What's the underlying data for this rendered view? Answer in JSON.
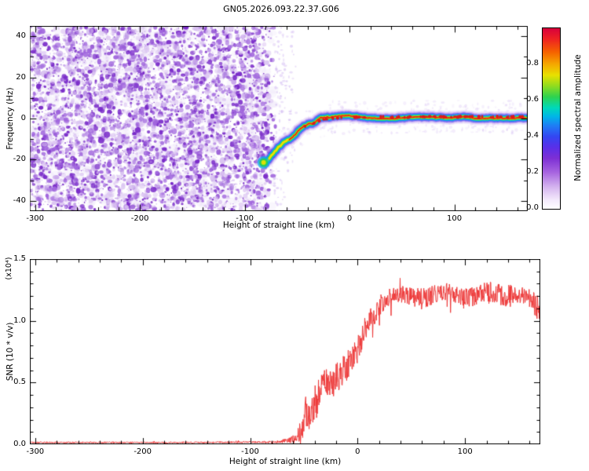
{
  "title": "GN05.2026.093.22.37.G06",
  "chart_data": [
    {
      "type": "heatmap",
      "panel": "spectrogram",
      "xlabel": "Height of straight line (km)",
      "ylabel": "Frequency (Hz)",
      "xlim": [
        -305,
        170
      ],
      "ylim": [
        -45,
        45
      ],
      "xticks": [
        -300,
        -200,
        -100,
        0,
        100
      ],
      "yticks": [
        40,
        20,
        0,
        -20,
        -40
      ],
      "grid": false,
      "colorbar": {
        "label": "Normalized spectral amplitude",
        "range": [
          0,
          1
        ],
        "ticks": [
          "0.0",
          "0.2",
          "0.4",
          "0.6",
          "0.8"
        ],
        "tick_values": [
          0,
          0.2,
          0.4,
          0.6,
          0.8
        ],
        "stops": [
          {
            "pos": 0.0,
            "color": "#ffffff"
          },
          {
            "pos": 0.05,
            "color": "#f3e9fb"
          },
          {
            "pos": 0.12,
            "color": "#d5b5ef"
          },
          {
            "pos": 0.2,
            "color": "#a866e0"
          },
          {
            "pos": 0.28,
            "color": "#7d2fd4"
          },
          {
            "pos": 0.34,
            "color": "#5a2fe8"
          },
          {
            "pos": 0.4,
            "color": "#3346f2"
          },
          {
            "pos": 0.46,
            "color": "#1f7df5"
          },
          {
            "pos": 0.51,
            "color": "#00b4e8"
          },
          {
            "pos": 0.56,
            "color": "#00d9b8"
          },
          {
            "pos": 0.62,
            "color": "#2ed24f"
          },
          {
            "pos": 0.68,
            "color": "#8fdc1f"
          },
          {
            "pos": 0.74,
            "color": "#e8e000"
          },
          {
            "pos": 0.8,
            "color": "#f5a800"
          },
          {
            "pos": 0.87,
            "color": "#f56000"
          },
          {
            "pos": 0.94,
            "color": "#ee2222"
          },
          {
            "pos": 1.0,
            "color": "#d8003c"
          }
        ]
      },
      "noise_region": {
        "x_range": [
          -305,
          -70
        ],
        "freq_range": [
          -45,
          45
        ]
      },
      "noise_colors": {
        "wash": "rgba(228,214,246,0.22)",
        "light": "219,196,242",
        "medium": "160,101,221",
        "dark": "122,44,201"
      },
      "signal_track": [
        [
          -82,
          -21.5
        ],
        [
          -79,
          -20
        ],
        [
          -76,
          -18.5
        ],
        [
          -72,
          -16.5
        ],
        [
          -68,
          -14.5
        ],
        [
          -64,
          -12.5
        ],
        [
          -60,
          -10.5
        ],
        [
          -56,
          -9
        ],
        [
          -52,
          -7.5
        ],
        [
          -48,
          -6
        ],
        [
          -45,
          -5
        ],
        [
          -42,
          -4
        ],
        [
          -39,
          -3.2
        ],
        [
          -36,
          -2.6
        ],
        [
          -33,
          -2
        ],
        [
          -30,
          -1.5
        ],
        [
          -27,
          -1
        ],
        [
          -24,
          -0.6
        ],
        [
          -20,
          -0.2
        ],
        [
          -15,
          0.3
        ],
        [
          -10,
          0.6
        ],
        [
          0,
          0.8
        ],
        [
          20,
          0.8
        ],
        [
          40,
          0.6
        ],
        [
          60,
          0.8
        ],
        [
          80,
          0.7
        ],
        [
          100,
          0.8
        ],
        [
          120,
          0.7
        ],
        [
          140,
          0.8
        ],
        [
          168,
          0.7
        ]
      ],
      "track_layers": [
        {
          "w": 17,
          "c": "rgba(200,165,240,0.30)"
        },
        {
          "w": 13,
          "c": "rgba(140,90,235,0.45)"
        },
        {
          "w": 10,
          "c": "rgba(60,70,240,0.65)"
        },
        {
          "w": 7.5,
          "c": "rgba(10,150,245,0.85)"
        },
        {
          "w": 5.5,
          "c": "rgba(0,215,190,0.95)"
        },
        {
          "w": 4.2,
          "c": "rgba(60,210,60,1)"
        },
        {
          "w": 2.8,
          "c": "rgba(240,225,0,1)"
        }
      ],
      "track_core": {
        "w": 1.7,
        "c": "#e52015",
        "from_x": -58
      }
    },
    {
      "type": "line",
      "panel": "snr",
      "xlabel": "Height of straight line (km)",
      "ylabel": "SNR (10 * v/v)",
      "scale_label": "(x10⁴)",
      "xlim": [
        -305,
        170
      ],
      "ylim": [
        0,
        1.5
      ],
      "xticks": [
        -300,
        -200,
        -100,
        0,
        100
      ],
      "yticks": [
        "0.0",
        "0.5",
        "1.0",
        "1.5"
      ],
      "ytick_values": [
        0,
        0.5,
        1.0,
        1.5
      ],
      "color": "#ee3b3b",
      "series": [
        {
          "name": "SNR",
          "profile_note": "columns: x(km), mean SNR (x10^4), noise half-amplitude",
          "profile": [
            [
              -305,
              0.015,
              0.006
            ],
            [
              -150,
              0.015,
              0.006
            ],
            [
              -90,
              0.018,
              0.008
            ],
            [
              -75,
              0.02,
              0.01
            ],
            [
              -65,
              0.03,
              0.02
            ],
            [
              -57,
              0.05,
              0.04
            ],
            [
              -52,
              0.12,
              0.1
            ],
            [
              -48,
              0.28,
              0.14
            ],
            [
              -44,
              0.22,
              0.12
            ],
            [
              -40,
              0.32,
              0.15
            ],
            [
              -35,
              0.42,
              0.15
            ],
            [
              -30,
              0.5,
              0.13
            ],
            [
              -22,
              0.52,
              0.13
            ],
            [
              -15,
              0.58,
              0.12
            ],
            [
              -8,
              0.65,
              0.12
            ],
            [
              0,
              0.78,
              0.12
            ],
            [
              8,
              0.95,
              0.1
            ],
            [
              15,
              1.05,
              0.09
            ],
            [
              25,
              1.17,
              0.08
            ],
            [
              40,
              1.22,
              0.07
            ],
            [
              60,
              1.18,
              0.09
            ],
            [
              80,
              1.24,
              0.07
            ],
            [
              100,
              1.18,
              0.09
            ],
            [
              120,
              1.24,
              0.08
            ],
            [
              140,
              1.2,
              0.09
            ],
            [
              155,
              1.22,
              0.08
            ],
            [
              168,
              1.1,
              0.1
            ]
          ]
        }
      ]
    }
  ]
}
